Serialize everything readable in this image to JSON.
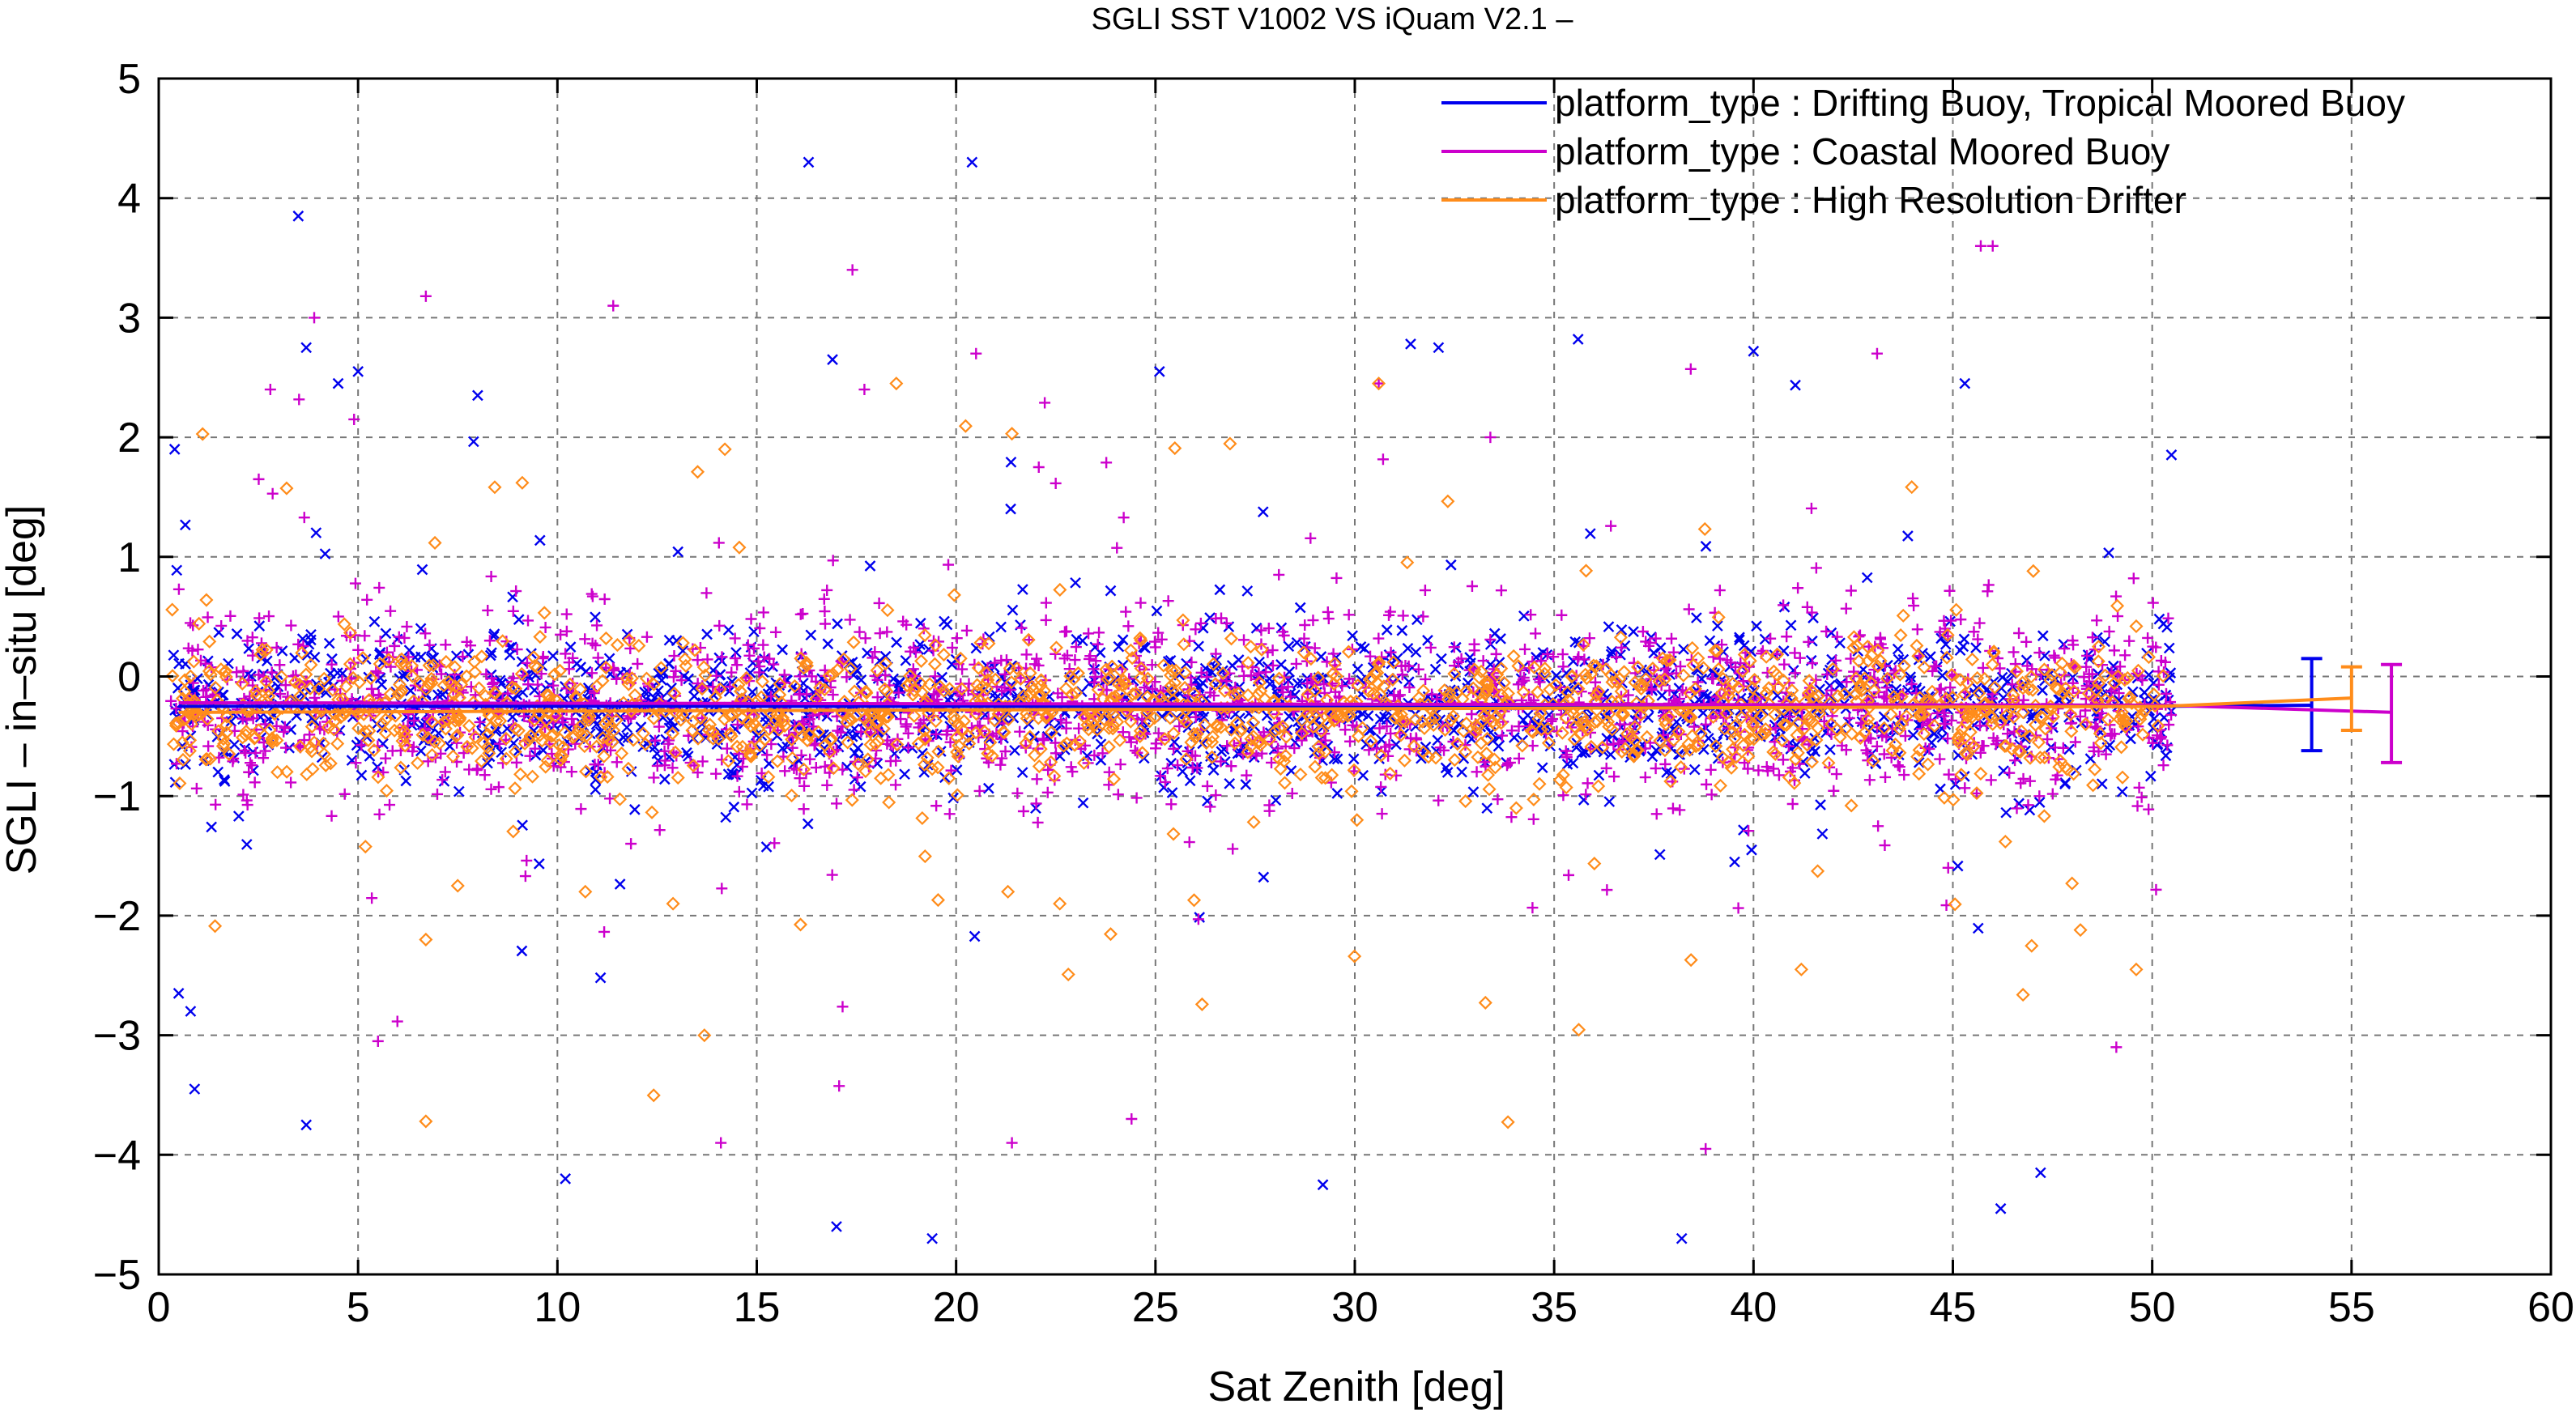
{
  "chart_data": {
    "type": "scatter",
    "title": "SGLI SST V1002 VS iQuam V2.1  –",
    "xlabel": "Sat Zenith [deg]",
    "ylabel": "SGLI – in–situ [deg]",
    "xlim": [
      0,
      60
    ],
    "ylim": [
      -5,
      5
    ],
    "xticks": [
      0,
      5,
      10,
      15,
      20,
      25,
      30,
      35,
      40,
      45,
      50,
      55,
      60
    ],
    "yticks": [
      -5,
      -4,
      -3,
      -2,
      -1,
      0,
      1,
      2,
      3,
      4,
      5
    ],
    "xtick_labels": [
      "0",
      "5",
      "10",
      "15",
      "20",
      "25",
      "30",
      "35",
      "40",
      "45",
      "50",
      "55",
      "60"
    ],
    "ytick_labels": [
      "−5",
      "−4",
      "−3",
      "−2",
      "−1",
      "0",
      "1",
      "2",
      "3",
      "4",
      "5"
    ],
    "grid": true,
    "legend_position": "top-right",
    "series": [
      {
        "name": "platform_type : Drifting Buoy, Tropical Moored Buoy",
        "color": "#0000ee",
        "marker": "x",
        "x_range": [
          0.3,
          50.5
        ],
        "mean_trend": {
          "x": [
            0.5,
            50.3
          ],
          "y": [
            -0.25,
            -0.25
          ]
        },
        "error_bar": {
          "x": 54,
          "mean": -0.24,
          "low": -0.62,
          "high": 0.15
        },
        "outliers": [
          {
            "x": 0.4,
            "y": 1.9
          },
          {
            "x": 0.5,
            "y": -2.65
          },
          {
            "x": 0.8,
            "y": -2.8
          },
          {
            "x": 0.9,
            "y": -3.45
          },
          {
            "x": 3.5,
            "y": 3.85
          },
          {
            "x": 3.7,
            "y": 2.75
          },
          {
            "x": 3.7,
            "y": -3.75
          },
          {
            "x": 4.5,
            "y": 2.45
          },
          {
            "x": 5.0,
            "y": 2.55
          },
          {
            "x": 8.0,
            "y": 2.35
          },
          {
            "x": 10.2,
            "y": -4.2
          },
          {
            "x": 16.3,
            "y": 4.3
          },
          {
            "x": 16.9,
            "y": 2.65
          },
          {
            "x": 17.0,
            "y": -4.6
          },
          {
            "x": 19.4,
            "y": -4.7
          },
          {
            "x": 20.4,
            "y": 4.3
          },
          {
            "x": 25.1,
            "y": 2.55
          },
          {
            "x": 29.2,
            "y": -4.25
          },
          {
            "x": 31.4,
            "y": 2.78
          },
          {
            "x": 32.1,
            "y": 2.75
          },
          {
            "x": 35.6,
            "y": 2.82
          },
          {
            "x": 38.2,
            "y": -4.7
          },
          {
            "x": 40.0,
            "y": 2.72
          },
          {
            "x": 45.3,
            "y": 2.45
          },
          {
            "x": 46.2,
            "y": -4.45
          },
          {
            "x": 47.2,
            "y": -4.15
          }
        ]
      },
      {
        "name": "platform_type : Coastal Moored Buoy",
        "color": "#cc00cc",
        "marker": "+",
        "x_range": [
          0.3,
          50.5
        ],
        "mean_trend": {
          "x": [
            0.5,
            50.3
          ],
          "y": [
            -0.22,
            -0.24
          ]
        },
        "error_bar": {
          "x": 56,
          "mean": -0.3,
          "low": -0.72,
          "high": 0.1
        },
        "outliers": [
          {
            "x": 2.8,
            "y": 2.4
          },
          {
            "x": 3.9,
            "y": 3.0
          },
          {
            "x": 4.9,
            "y": 2.15
          },
          {
            "x": 5.5,
            "y": -3.05
          },
          {
            "x": 6.7,
            "y": 3.18
          },
          {
            "x": 11.4,
            "y": 3.1
          },
          {
            "x": 14.1,
            "y": -3.9
          },
          {
            "x": 17.4,
            "y": 3.4
          },
          {
            "x": 17.7,
            "y": 2.4
          },
          {
            "x": 20.5,
            "y": 2.7
          },
          {
            "x": 21.4,
            "y": -3.9
          },
          {
            "x": 24.4,
            "y": -3.7
          },
          {
            "x": 30.6,
            "y": 2.45
          },
          {
            "x": 33.4,
            "y": 2.0
          },
          {
            "x": 38.8,
            "y": -3.95
          },
          {
            "x": 43.1,
            "y": 2.7
          },
          {
            "x": 45.7,
            "y": 3.6
          },
          {
            "x": 46.0,
            "y": 3.6
          },
          {
            "x": 49.1,
            "y": -3.1
          }
        ]
      },
      {
        "name": "platform_type : High Resolution Drifter",
        "color": "#ff8c1a",
        "marker": "diamond",
        "x_range": [
          0.3,
          50.3
        ],
        "mean_trend": {
          "x": [
            0.5,
            50.3
          ],
          "y": [
            -0.3,
            -0.25
          ]
        },
        "error_bar": {
          "x": 55,
          "mean": -0.18,
          "low": -0.45,
          "high": 0.08
        },
        "outliers": [
          {
            "x": 6.7,
            "y": -3.72
          },
          {
            "x": 6.7,
            "y": -2.2
          },
          {
            "x": 7.5,
            "y": -1.75
          },
          {
            "x": 10.7,
            "y": -1.8
          },
          {
            "x": 12.9,
            "y": -1.9
          },
          {
            "x": 14.2,
            "y": 1.9
          },
          {
            "x": 18.5,
            "y": 2.45
          },
          {
            "x": 21.4,
            "y": 2.03
          },
          {
            "x": 21.3,
            "y": -1.8
          },
          {
            "x": 22.6,
            "y": -1.9
          },
          {
            "x": 30.6,
            "y": 2.45
          },
          {
            "x": 41.2,
            "y": -2.45
          },
          {
            "x": 48.2,
            "y": -2.12
          },
          {
            "x": 49.6,
            "y": -2.45
          },
          {
            "x": 49.6,
            "y": 0.42
          }
        ]
      }
    ]
  }
}
